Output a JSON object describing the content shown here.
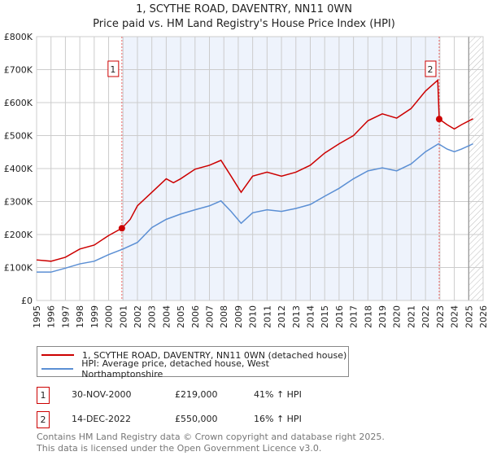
{
  "chart_data": {
    "type": "line",
    "title": "1, SCYTHE ROAD, DAVENTRY, NN11 0WN",
    "subtitle": "Price paid vs. HM Land Registry's House Price Index (HPI)",
    "xlim": [
      1995,
      2026
    ],
    "ylim": [
      0,
      800000
    ],
    "x_ticks": [
      "1995",
      "1996",
      "1997",
      "1998",
      "1999",
      "2000",
      "2001",
      "2002",
      "2003",
      "2004",
      "2005",
      "2006",
      "2007",
      "2008",
      "2009",
      "2010",
      "2011",
      "2012",
      "2013",
      "2014",
      "2015",
      "2016",
      "2017",
      "2018",
      "2019",
      "2020",
      "2021",
      "2022",
      "2023",
      "2024",
      "2025",
      "2026"
    ],
    "y_ticks": [
      {
        "v": 0,
        "label": "£0"
      },
      {
        "v": 100000,
        "label": "£100K"
      },
      {
        "v": 200000,
        "label": "£200K"
      },
      {
        "v": 300000,
        "label": "£300K"
      },
      {
        "v": 400000,
        "label": "£400K"
      },
      {
        "v": 500000,
        "label": "£500K"
      },
      {
        "v": 600000,
        "label": "£600K"
      },
      {
        "v": 700000,
        "label": "£700K"
      },
      {
        "v": 800000,
        "label": "£800K"
      }
    ],
    "grid": true,
    "series": [
      {
        "name": "1, SCYTHE ROAD, DAVENTRY, NN11 0WN (detached house)",
        "color": "#cc0000",
        "x": [
          1995,
          1996,
          1997,
          1998,
          1999,
          2000,
          2000.92,
          2001.5,
          2002,
          2003,
          2004,
          2004.5,
          2005,
          2006,
          2007,
          2007.8,
          2008.5,
          2009.2,
          2010,
          2011,
          2012,
          2013,
          2014,
          2015,
          2016,
          2017,
          2018,
          2019,
          2020,
          2021,
          2022,
          2022.85,
          2022.95,
          2023.5,
          2024,
          2024.5,
          2025.3
        ],
        "y": [
          123000,
          119000,
          131000,
          156000,
          168000,
          197000,
          219000,
          246000,
          287000,
          328000,
          369000,
          357000,
          369000,
          398000,
          410000,
          425000,
          377000,
          328000,
          377000,
          389000,
          377000,
          389000,
          410000,
          447000,
          475000,
          500000,
          545000,
          566000,
          553000,
          582000,
          635000,
          668000,
          550000,
          533000,
          520000,
          533000,
          551000
        ]
      },
      {
        "name": "HPI: Average price, detached house, West Northamptonshire",
        "color": "#5b8fd4",
        "x": [
          1995,
          1996,
          1997,
          1998,
          1999,
          2000,
          2001,
          2002,
          2003,
          2004,
          2005,
          2006,
          2007,
          2007.8,
          2008.5,
          2009.2,
          2010,
          2011,
          2012,
          2013,
          2014,
          2015,
          2016,
          2017,
          2018,
          2019,
          2020,
          2021,
          2022,
          2022.9,
          2023.5,
          2024,
          2024.5,
          2025.3
        ],
        "y": [
          86000,
          86000,
          98000,
          111000,
          119000,
          139000,
          156000,
          176000,
          221000,
          246000,
          262000,
          275000,
          287000,
          302000,
          270000,
          234000,
          266000,
          275000,
          270000,
          279000,
          291000,
          316000,
          340000,
          369000,
          393000,
          402000,
          393000,
          414000,
          451000,
          475000,
          459000,
          451000,
          459000,
          475000
        ]
      }
    ],
    "markers": [
      {
        "label": "1",
        "x": 2000.92,
        "y": 219000
      },
      {
        "label": "2",
        "x": 2022.95,
        "y": 550000
      }
    ],
    "shaded_range": [
      2000.92,
      2022.95
    ],
    "hatched_from": 2025.0,
    "legend_placement": "bottom"
  },
  "transactions": [
    {
      "num": "1",
      "date": "30-NOV-2000",
      "price": "£219,000",
      "hpi": "41% ↑ HPI"
    },
    {
      "num": "2",
      "date": "14-DEC-2022",
      "price": "£550,000",
      "hpi": "16% ↑ HPI"
    }
  ],
  "footer": [
    "Contains HM Land Registry data © Crown copyright and database right 2025.",
    "This data is licensed under the Open Government Licence v3.0."
  ]
}
